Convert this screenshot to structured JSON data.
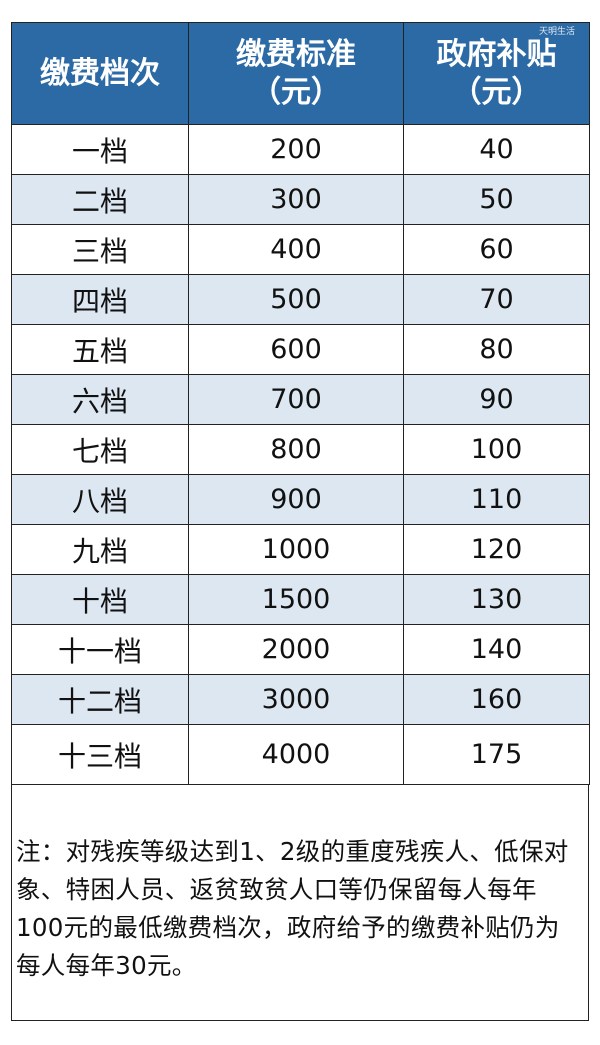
{
  "watermark": "天明生活",
  "table": {
    "headers": [
      {
        "line1": "缴费档次",
        "line2": ""
      },
      {
        "line1": "缴费标准",
        "line2": "（元）"
      },
      {
        "line1": "政府补贴",
        "line2": "（元）"
      }
    ],
    "rows": [
      [
        "一档",
        "200",
        "40"
      ],
      [
        "二档",
        "300",
        "50"
      ],
      [
        "三档",
        "400",
        "60"
      ],
      [
        "四档",
        "500",
        "70"
      ],
      [
        "五档",
        "600",
        "80"
      ],
      [
        "六档",
        "700",
        "90"
      ],
      [
        "七档",
        "800",
        "100"
      ],
      [
        "八档",
        "900",
        "110"
      ],
      [
        "九档",
        "1000",
        "120"
      ],
      [
        "十档",
        "1500",
        "130"
      ],
      [
        "十一档",
        "2000",
        "140"
      ],
      [
        "十二档",
        "3000",
        "160"
      ],
      [
        "十三档",
        "4000",
        "175"
      ]
    ]
  },
  "note": "注：对残疾等级达到1、2级的重度残疾人、低保对象、特困人员、返贫致贫人口等仍保留每人每年100元的最低缴费档次，政府给予的缴费补贴仍为每人每年30元。",
  "colors": {
    "header_bg": "#2c6aa6",
    "alt_row_bg": "#dde7f2"
  }
}
